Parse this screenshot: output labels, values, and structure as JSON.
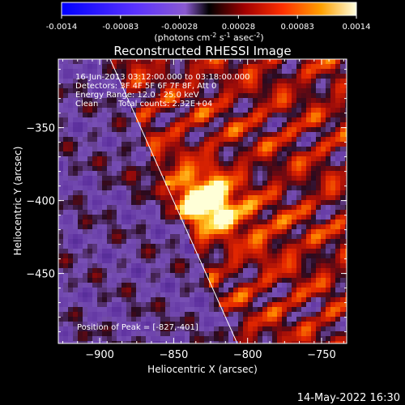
{
  "chart_data": {
    "type": "heatmap",
    "title": "Reconstructed RHESSI Image",
    "xlabel": "Heliocentric X (arcsec)",
    "ylabel": "Heliocentric Y (arcsec)",
    "xlim": [
      -928,
      -733
    ],
    "ylim": [
      -498,
      -303
    ],
    "x_ticks": [
      -900,
      -850,
      -800,
      -750
    ],
    "y_ticks": [
      -350,
      -400,
      -450
    ],
    "colorbar": {
      "range": [
        -0.0014,
        0.0014
      ],
      "ticks": [
        "-0.0014",
        "-0.00083",
        "-0.00028",
        "0.00028",
        "0.00083",
        "0.0014"
      ],
      "label": "(photons cm",
      "label_exp1": "-2",
      "label_mid": " s",
      "label_exp2": "-1",
      "label_mid2": " asec",
      "label_exp3": "-2",
      "label_end": ")"
    },
    "annotations": [
      "16-Jun-2013 03:12:00.000 to 03:18:00.000",
      "Detectors: 3F 4F 5F 6F 7F 8F, Att 0",
      "Energy Range: 12.0 - 25.0 keV",
      "Clean",
      "Total counts: 2.32E+04"
    ],
    "peak_label": "Position of Peak = [-827,-401]",
    "peak": {
      "x": -827,
      "y": -401
    },
    "limb_line": [
      {
        "x": -893,
        "y": -303
      },
      {
        "x": -807,
        "y": -498
      }
    ],
    "colors": {
      "bg": "#000000",
      "axes": "#ffffff"
    }
  },
  "footer": {
    "timestamp": "14-May-2022 16:30"
  }
}
